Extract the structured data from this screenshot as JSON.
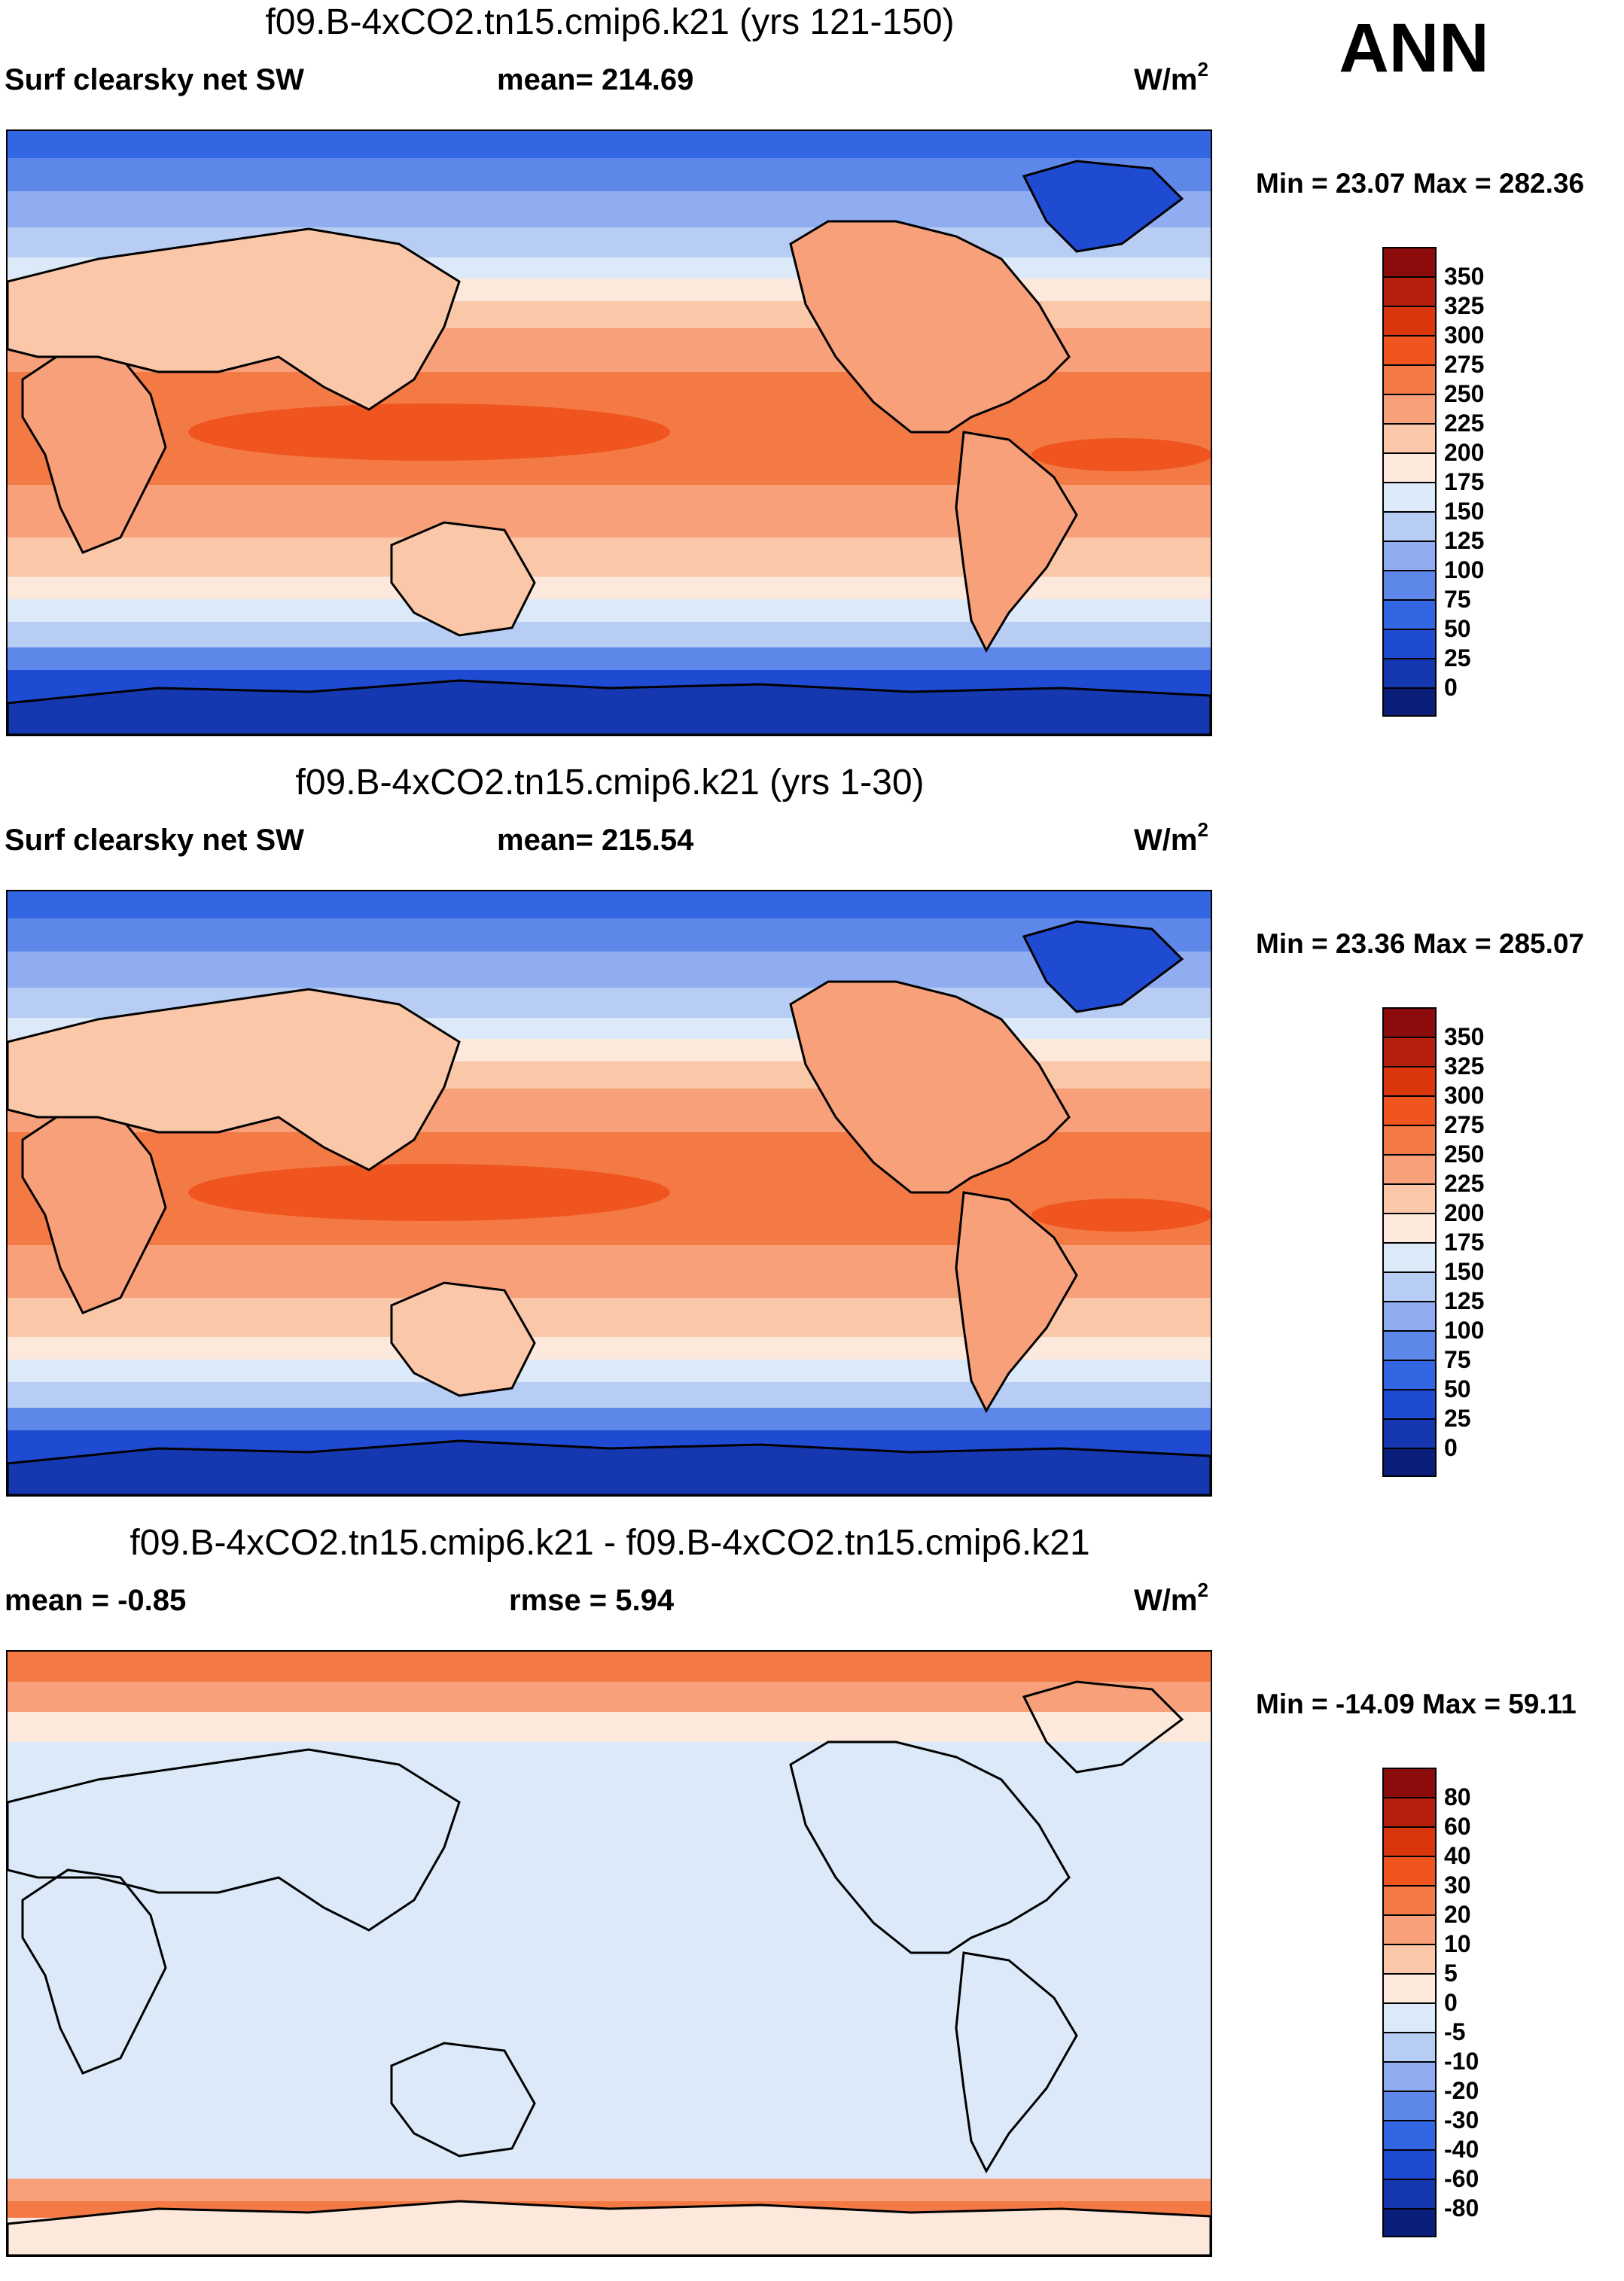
{
  "season": "ANN",
  "panels": [
    {
      "title": "f09.B-4xCO2.tn15.cmip6.k21 (yrs 121-150)",
      "left": "Surf clearsky net SW",
      "center": "mean= 214.69",
      "units": "W/m",
      "units_sup": "2",
      "minmax": "Min =  23.07 Max = 282.36"
    },
    {
      "title": "f09.B-4xCO2.tn15.cmip6.k21 (yrs 1-30)",
      "left": "Surf clearsky net SW",
      "center": "mean= 215.54",
      "units": "W/m",
      "units_sup": "2",
      "minmax": "Min =  23.36 Max = 285.07"
    },
    {
      "title": "f09.B-4xCO2.tn15.cmip6.k21 - f09.B-4xCO2.tn15.cmip6.k21",
      "left": "mean =  -0.85",
      "center": "rmse =   5.94",
      "units": "W/m",
      "units_sup": "2",
      "minmax": "Min = -14.09 Max =  59.11"
    }
  ],
  "colorbars": {
    "absolute": {
      "labels": [
        "350",
        "325",
        "300",
        "275",
        "250",
        "225",
        "200",
        "175",
        "150",
        "125",
        "100",
        "75",
        "50",
        "25",
        "0"
      ],
      "colors": [
        "#8c0b0b",
        "#b4200c",
        "#d9360e",
        "#f0551f",
        "#f47a45",
        "#f7a07a",
        "#fac7a8",
        "#fde9dc",
        "#dce9f8",
        "#b8cdf4",
        "#8fadf0",
        "#5e87ea",
        "#3366e3",
        "#1f4ad2",
        "#1538b0",
        "#0a1f7a"
      ]
    },
    "difference": {
      "labels": [
        "80",
        "60",
        "40",
        "30",
        "20",
        "10",
        "5",
        "0",
        "-5",
        "-10",
        "-20",
        "-30",
        "-40",
        "-60",
        "-80"
      ],
      "colors": [
        "#8c0b0b",
        "#b4200c",
        "#d9360e",
        "#f0551f",
        "#f47a45",
        "#f7a07a",
        "#fac7a8",
        "#fde9dc",
        "#dce9f8",
        "#b8cdf4",
        "#8fadf0",
        "#5e87ea",
        "#3366e3",
        "#1f4ad2",
        "#1538b0",
        "#0a1f7a"
      ]
    }
  }
}
